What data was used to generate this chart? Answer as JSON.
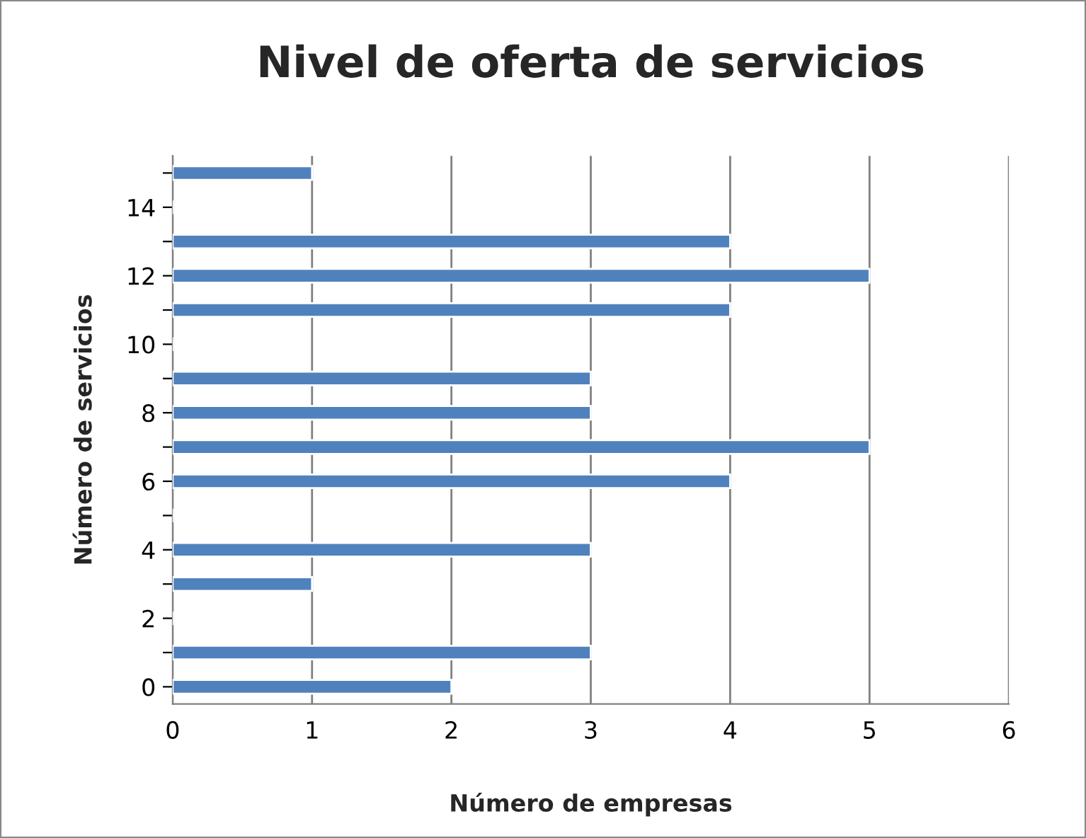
{
  "chart_data": {
    "type": "bar",
    "orientation": "horizontal",
    "title": "Nivel de oferta de servicios",
    "xlabel": "Número de empresas",
    "ylabel": "Número de servicios",
    "categories": [
      null,
      "14",
      null,
      "12",
      null,
      "10",
      null,
      "8",
      null,
      "6",
      null,
      "4",
      null,
      "2",
      null,
      "0"
    ],
    "values": [
      1,
      null,
      4,
      5,
      4,
      null,
      3,
      3,
      5,
      4,
      null,
      3,
      1,
      null,
      3,
      2
    ],
    "color": "#4f81bd",
    "xlim": [
      0,
      6
    ],
    "xticks": [
      0,
      1,
      2,
      3,
      4,
      5,
      6
    ],
    "grid": "x",
    "legend": false
  }
}
